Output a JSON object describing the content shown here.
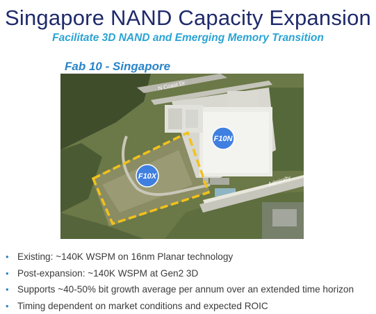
{
  "slide": {
    "title": "Singapore NAND Capacity Expansion",
    "subtitle": "Facilitate 3D NAND and Emerging Memory Transition",
    "fab_label": "Fab 10 - Singapore"
  },
  "aerial_photo": {
    "markers": [
      {
        "label": "F10N"
      },
      {
        "label": "F10X"
      }
    ],
    "road_labels": [
      "N Coast Dr",
      "Admiralty"
    ],
    "colors": {
      "marker_fill": "#3f7fe0",
      "expansion_outline": "#f2c21a",
      "vegetation": "#5d6b3f",
      "building_roof": "#e6e6e1"
    }
  },
  "bullets": [
    {
      "marker": "•",
      "text": "Existing: ~140K WSPM on 16nm Planar technology"
    },
    {
      "marker": "•",
      "text": "Post-expansion: ~140K WSPM at Gen2 3D"
    },
    {
      "marker": "•",
      "text": "Supports ~40-50% bit growth average per annum over an extended time horizon"
    },
    {
      "marker": "•",
      "text": "Timing dependent on market conditions and expected ROIC"
    }
  ]
}
